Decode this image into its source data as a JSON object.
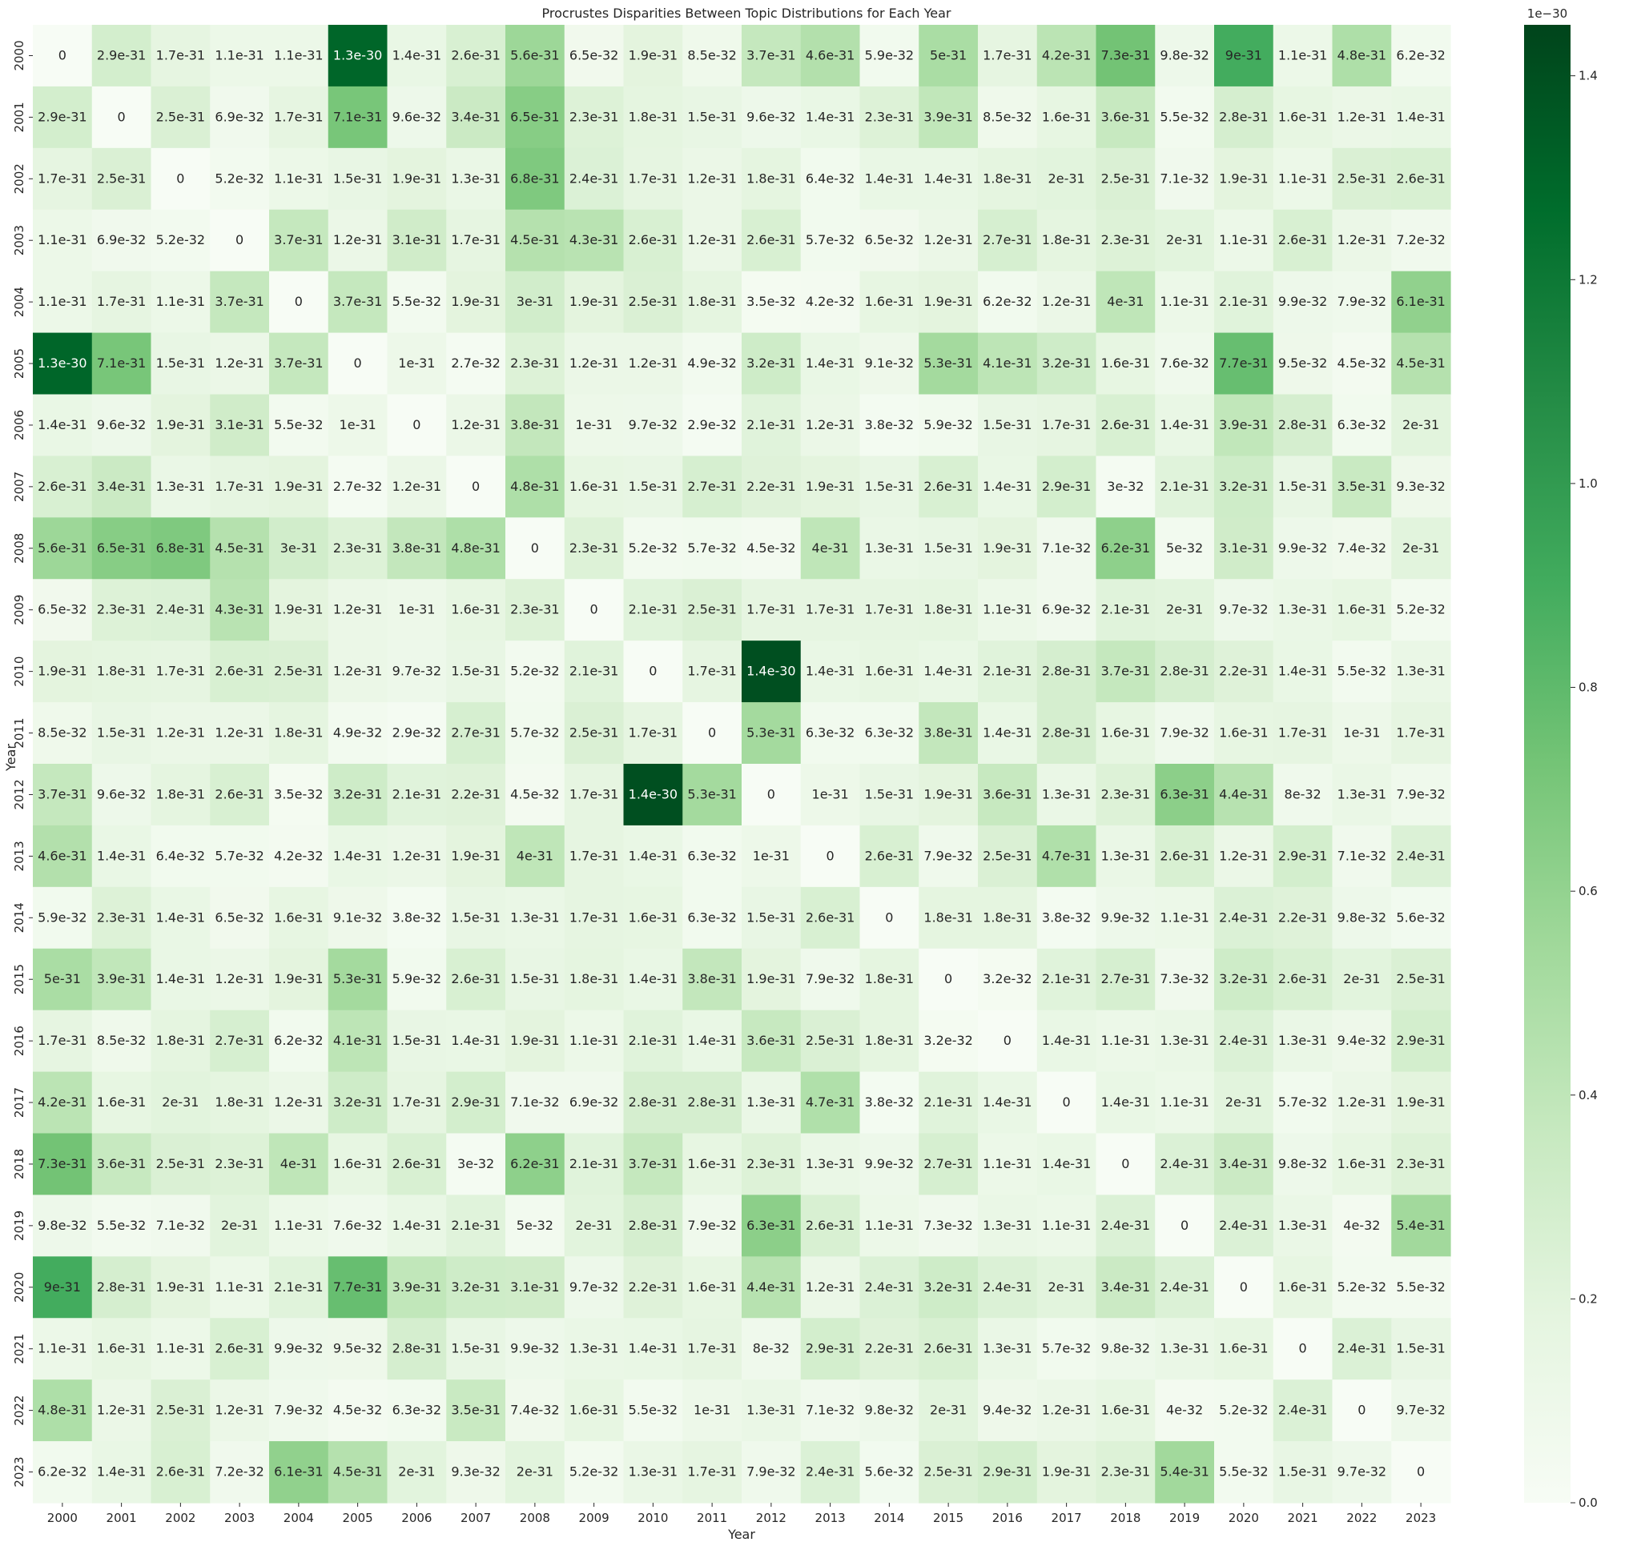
{
  "chart_data": {
    "type": "heatmap",
    "title": "Procrustes Disparities Between Topic Distributions for Each Year",
    "xlabel": "Year",
    "ylabel": "Year",
    "x_categories": [
      "2000",
      "2001",
      "2002",
      "2003",
      "2004",
      "2005",
      "2006",
      "2007",
      "2008",
      "2009",
      "2010",
      "2011",
      "2012",
      "2013",
      "2014",
      "2015",
      "2016",
      "2017",
      "2018",
      "2019",
      "2020",
      "2021",
      "2022",
      "2023"
    ],
    "y_categories": [
      "2000",
      "2001",
      "2002",
      "2003",
      "2004",
      "2005",
      "2006",
      "2007",
      "2008",
      "2009",
      "2010",
      "2011",
      "2012",
      "2013",
      "2014",
      "2015",
      "2016",
      "2017",
      "2018",
      "2019",
      "2020",
      "2021",
      "2022",
      "2023"
    ],
    "labels": [
      [
        "0",
        "2.9e-31",
        "1.7e-31",
        "1.1e-31",
        "1.1e-31",
        "1.3e-30",
        "1.4e-31",
        "2.6e-31",
        "5.6e-31",
        "6.5e-32",
        "1.9e-31",
        "8.5e-32",
        "3.7e-31",
        "4.6e-31",
        "5.9e-32",
        "5e-31",
        "1.7e-31",
        "4.2e-31",
        "7.3e-31",
        "9.8e-32",
        "9e-31",
        "1.1e-31",
        "4.8e-31",
        "6.2e-32"
      ],
      [
        "2.9e-31",
        "0",
        "2.5e-31",
        "6.9e-32",
        "1.7e-31",
        "7.1e-31",
        "9.6e-32",
        "3.4e-31",
        "6.5e-31",
        "2.3e-31",
        "1.8e-31",
        "1.5e-31",
        "9.6e-32",
        "1.4e-31",
        "2.3e-31",
        "3.9e-31",
        "8.5e-32",
        "1.6e-31",
        "3.6e-31",
        "5.5e-32",
        "2.8e-31",
        "1.6e-31",
        "1.2e-31",
        "1.4e-31"
      ],
      [
        "1.7e-31",
        "2.5e-31",
        "0",
        "5.2e-32",
        "1.1e-31",
        "1.5e-31",
        "1.9e-31",
        "1.3e-31",
        "6.8e-31",
        "2.4e-31",
        "1.7e-31",
        "1.2e-31",
        "1.8e-31",
        "6.4e-32",
        "1.4e-31",
        "1.4e-31",
        "1.8e-31",
        "2e-31",
        "2.5e-31",
        "7.1e-32",
        "1.9e-31",
        "1.1e-31",
        "2.5e-31",
        "2.6e-31"
      ],
      [
        "1.1e-31",
        "6.9e-32",
        "5.2e-32",
        "0",
        "3.7e-31",
        "1.2e-31",
        "3.1e-31",
        "1.7e-31",
        "4.5e-31",
        "4.3e-31",
        "2.6e-31",
        "1.2e-31",
        "2.6e-31",
        "5.7e-32",
        "6.5e-32",
        "1.2e-31",
        "2.7e-31",
        "1.8e-31",
        "2.3e-31",
        "2e-31",
        "1.1e-31",
        "2.6e-31",
        "1.2e-31",
        "7.2e-32"
      ],
      [
        "1.1e-31",
        "1.7e-31",
        "1.1e-31",
        "3.7e-31",
        "0",
        "3.7e-31",
        "5.5e-32",
        "1.9e-31",
        "3e-31",
        "1.9e-31",
        "2.5e-31",
        "1.8e-31",
        "3.5e-32",
        "4.2e-32",
        "1.6e-31",
        "1.9e-31",
        "6.2e-32",
        "1.2e-31",
        "4e-31",
        "1.1e-31",
        "2.1e-31",
        "9.9e-32",
        "7.9e-32",
        "6.1e-31"
      ],
      [
        "1.3e-30",
        "7.1e-31",
        "1.5e-31",
        "1.2e-31",
        "3.7e-31",
        "0",
        "1e-31",
        "2.7e-32",
        "2.3e-31",
        "1.2e-31",
        "1.2e-31",
        "4.9e-32",
        "3.2e-31",
        "1.4e-31",
        "9.1e-32",
        "5.3e-31",
        "4.1e-31",
        "3.2e-31",
        "1.6e-31",
        "7.6e-32",
        "7.7e-31",
        "9.5e-32",
        "4.5e-32",
        "4.5e-31"
      ],
      [
        "1.4e-31",
        "9.6e-32",
        "1.9e-31",
        "3.1e-31",
        "5.5e-32",
        "1e-31",
        "0",
        "1.2e-31",
        "3.8e-31",
        "1e-31",
        "9.7e-32",
        "2.9e-32",
        "2.1e-31",
        "1.2e-31",
        "3.8e-32",
        "5.9e-32",
        "1.5e-31",
        "1.7e-31",
        "2.6e-31",
        "1.4e-31",
        "3.9e-31",
        "2.8e-31",
        "6.3e-32",
        "2e-31"
      ],
      [
        "2.6e-31",
        "3.4e-31",
        "1.3e-31",
        "1.7e-31",
        "1.9e-31",
        "2.7e-32",
        "1.2e-31",
        "0",
        "4.8e-31",
        "1.6e-31",
        "1.5e-31",
        "2.7e-31",
        "2.2e-31",
        "1.9e-31",
        "1.5e-31",
        "2.6e-31",
        "1.4e-31",
        "2.9e-31",
        "3e-32",
        "2.1e-31",
        "3.2e-31",
        "1.5e-31",
        "3.5e-31",
        "9.3e-32"
      ],
      [
        "5.6e-31",
        "6.5e-31",
        "6.8e-31",
        "4.5e-31",
        "3e-31",
        "2.3e-31",
        "3.8e-31",
        "4.8e-31",
        "0",
        "2.3e-31",
        "5.2e-32",
        "5.7e-32",
        "4.5e-32",
        "4e-31",
        "1.3e-31",
        "1.5e-31",
        "1.9e-31",
        "7.1e-32",
        "6.2e-31",
        "5e-32",
        "3.1e-31",
        "9.9e-32",
        "7.4e-32",
        "2e-31"
      ],
      [
        "6.5e-32",
        "2.3e-31",
        "2.4e-31",
        "4.3e-31",
        "1.9e-31",
        "1.2e-31",
        "1e-31",
        "1.6e-31",
        "2.3e-31",
        "0",
        "2.1e-31",
        "2.5e-31",
        "1.7e-31",
        "1.7e-31",
        "1.7e-31",
        "1.8e-31",
        "1.1e-31",
        "6.9e-32",
        "2.1e-31",
        "2e-31",
        "9.7e-32",
        "1.3e-31",
        "1.6e-31",
        "5.2e-32"
      ],
      [
        "1.9e-31",
        "1.8e-31",
        "1.7e-31",
        "2.6e-31",
        "2.5e-31",
        "1.2e-31",
        "9.7e-32",
        "1.5e-31",
        "5.2e-32",
        "2.1e-31",
        "0",
        "1.7e-31",
        "1.4e-30",
        "1.4e-31",
        "1.6e-31",
        "1.4e-31",
        "2.1e-31",
        "2.8e-31",
        "3.7e-31",
        "2.8e-31",
        "2.2e-31",
        "1.4e-31",
        "5.5e-32",
        "1.3e-31"
      ],
      [
        "8.5e-32",
        "1.5e-31",
        "1.2e-31",
        "1.2e-31",
        "1.8e-31",
        "4.9e-32",
        "2.9e-32",
        "2.7e-31",
        "5.7e-32",
        "2.5e-31",
        "1.7e-31",
        "0",
        "5.3e-31",
        "6.3e-32",
        "6.3e-32",
        "3.8e-31",
        "1.4e-31",
        "2.8e-31",
        "1.6e-31",
        "7.9e-32",
        "1.6e-31",
        "1.7e-31",
        "1e-31",
        "1.7e-31"
      ],
      [
        "3.7e-31",
        "9.6e-32",
        "1.8e-31",
        "2.6e-31",
        "3.5e-32",
        "3.2e-31",
        "2.1e-31",
        "2.2e-31",
        "4.5e-32",
        "1.7e-31",
        "1.4e-30",
        "5.3e-31",
        "0",
        "1e-31",
        "1.5e-31",
        "1.9e-31",
        "3.6e-31",
        "1.3e-31",
        "2.3e-31",
        "6.3e-31",
        "4.4e-31",
        "8e-32",
        "1.3e-31",
        "7.9e-32"
      ],
      [
        "4.6e-31",
        "1.4e-31",
        "6.4e-32",
        "5.7e-32",
        "4.2e-32",
        "1.4e-31",
        "1.2e-31",
        "1.9e-31",
        "4e-31",
        "1.7e-31",
        "1.4e-31",
        "6.3e-32",
        "1e-31",
        "0",
        "2.6e-31",
        "7.9e-32",
        "2.5e-31",
        "4.7e-31",
        "1.3e-31",
        "2.6e-31",
        "1.2e-31",
        "2.9e-31",
        "7.1e-32",
        "2.4e-31"
      ],
      [
        "5.9e-32",
        "2.3e-31",
        "1.4e-31",
        "6.5e-32",
        "1.6e-31",
        "9.1e-32",
        "3.8e-32",
        "1.5e-31",
        "1.3e-31",
        "1.7e-31",
        "1.6e-31",
        "6.3e-32",
        "1.5e-31",
        "2.6e-31",
        "0",
        "1.8e-31",
        "1.8e-31",
        "3.8e-32",
        "9.9e-32",
        "1.1e-31",
        "2.4e-31",
        "2.2e-31",
        "9.8e-32",
        "5.6e-32"
      ],
      [
        "5e-31",
        "3.9e-31",
        "1.4e-31",
        "1.2e-31",
        "1.9e-31",
        "5.3e-31",
        "5.9e-32",
        "2.6e-31",
        "1.5e-31",
        "1.8e-31",
        "1.4e-31",
        "3.8e-31",
        "1.9e-31",
        "7.9e-32",
        "1.8e-31",
        "0",
        "3.2e-32",
        "2.1e-31",
        "2.7e-31",
        "7.3e-32",
        "3.2e-31",
        "2.6e-31",
        "2e-31",
        "2.5e-31"
      ],
      [
        "1.7e-31",
        "8.5e-32",
        "1.8e-31",
        "2.7e-31",
        "6.2e-32",
        "4.1e-31",
        "1.5e-31",
        "1.4e-31",
        "1.9e-31",
        "1.1e-31",
        "2.1e-31",
        "1.4e-31",
        "3.6e-31",
        "2.5e-31",
        "1.8e-31",
        "3.2e-32",
        "0",
        "1.4e-31",
        "1.1e-31",
        "1.3e-31",
        "2.4e-31",
        "1.3e-31",
        "9.4e-32",
        "2.9e-31"
      ],
      [
        "4.2e-31",
        "1.6e-31",
        "2e-31",
        "1.8e-31",
        "1.2e-31",
        "3.2e-31",
        "1.7e-31",
        "2.9e-31",
        "7.1e-32",
        "6.9e-32",
        "2.8e-31",
        "2.8e-31",
        "1.3e-31",
        "4.7e-31",
        "3.8e-32",
        "2.1e-31",
        "1.4e-31",
        "0",
        "1.4e-31",
        "1.1e-31",
        "2e-31",
        "5.7e-32",
        "1.2e-31",
        "1.9e-31"
      ],
      [
        "7.3e-31",
        "3.6e-31",
        "2.5e-31",
        "2.3e-31",
        "4e-31",
        "1.6e-31",
        "2.6e-31",
        "3e-32",
        "6.2e-31",
        "2.1e-31",
        "3.7e-31",
        "1.6e-31",
        "2.3e-31",
        "1.3e-31",
        "9.9e-32",
        "2.7e-31",
        "1.1e-31",
        "1.4e-31",
        "0",
        "2.4e-31",
        "3.4e-31",
        "9.8e-32",
        "1.6e-31",
        "2.3e-31"
      ],
      [
        "9.8e-32",
        "5.5e-32",
        "7.1e-32",
        "2e-31",
        "1.1e-31",
        "7.6e-32",
        "1.4e-31",
        "2.1e-31",
        "5e-32",
        "2e-31",
        "2.8e-31",
        "7.9e-32",
        "6.3e-31",
        "2.6e-31",
        "1.1e-31",
        "7.3e-32",
        "1.3e-31",
        "1.1e-31",
        "2.4e-31",
        "0",
        "2.4e-31",
        "1.3e-31",
        "4e-32",
        "5.4e-31"
      ],
      [
        "9e-31",
        "2.8e-31",
        "1.9e-31",
        "1.1e-31",
        "2.1e-31",
        "7.7e-31",
        "3.9e-31",
        "3.2e-31",
        "3.1e-31",
        "9.7e-32",
        "2.2e-31",
        "1.6e-31",
        "4.4e-31",
        "1.2e-31",
        "2.4e-31",
        "3.2e-31",
        "2.4e-31",
        "2e-31",
        "3.4e-31",
        "2.4e-31",
        "0",
        "1.6e-31",
        "5.2e-32",
        "5.5e-32"
      ],
      [
        "1.1e-31",
        "1.6e-31",
        "1.1e-31",
        "2.6e-31",
        "9.9e-32",
        "9.5e-32",
        "2.8e-31",
        "1.5e-31",
        "9.9e-32",
        "1.3e-31",
        "1.4e-31",
        "1.7e-31",
        "8e-32",
        "2.9e-31",
        "2.2e-31",
        "2.6e-31",
        "1.3e-31",
        "5.7e-32",
        "9.8e-32",
        "1.3e-31",
        "1.6e-31",
        "0",
        "2.4e-31",
        "1.5e-31"
      ],
      [
        "4.8e-31",
        "1.2e-31",
        "2.5e-31",
        "1.2e-31",
        "7.9e-32",
        "4.5e-32",
        "6.3e-32",
        "3.5e-31",
        "7.4e-32",
        "1.6e-31",
        "5.5e-32",
        "1e-31",
        "1.3e-31",
        "7.1e-32",
        "9.8e-32",
        "2e-31",
        "9.4e-32",
        "1.2e-31",
        "1.6e-31",
        "4e-32",
        "5.2e-32",
        "2.4e-31",
        "0",
        "9.7e-32"
      ],
      [
        "6.2e-32",
        "1.4e-31",
        "2.6e-31",
        "7.2e-32",
        "6.1e-31",
        "4.5e-31",
        "2e-31",
        "9.3e-32",
        "2e-31",
        "5.2e-32",
        "1.3e-31",
        "1.7e-31",
        "7.9e-32",
        "2.4e-31",
        "5.6e-32",
        "2.5e-31",
        "2.9e-31",
        "1.9e-31",
        "2.3e-31",
        "5.4e-31",
        "5.5e-32",
        "1.5e-31",
        "9.7e-32",
        "0"
      ]
    ],
    "colorbar": {
      "colormap": "Greens",
      "vmin": 0,
      "vmax": 1.45,
      "ticks": [
        0.0,
        0.2,
        0.4,
        0.6,
        0.8,
        1.0,
        1.2,
        1.4
      ],
      "tick_labels": [
        "0.0",
        "0.2",
        "0.4",
        "0.6",
        "0.8",
        "1.0",
        "1.2",
        "1.4"
      ],
      "multiplier_label": "1e−30"
    },
    "colors": {
      "low": "#f7fcf5",
      "high": "#00441b",
      "text_dark": "#262626",
      "text_light": "#ffffff"
    }
  }
}
